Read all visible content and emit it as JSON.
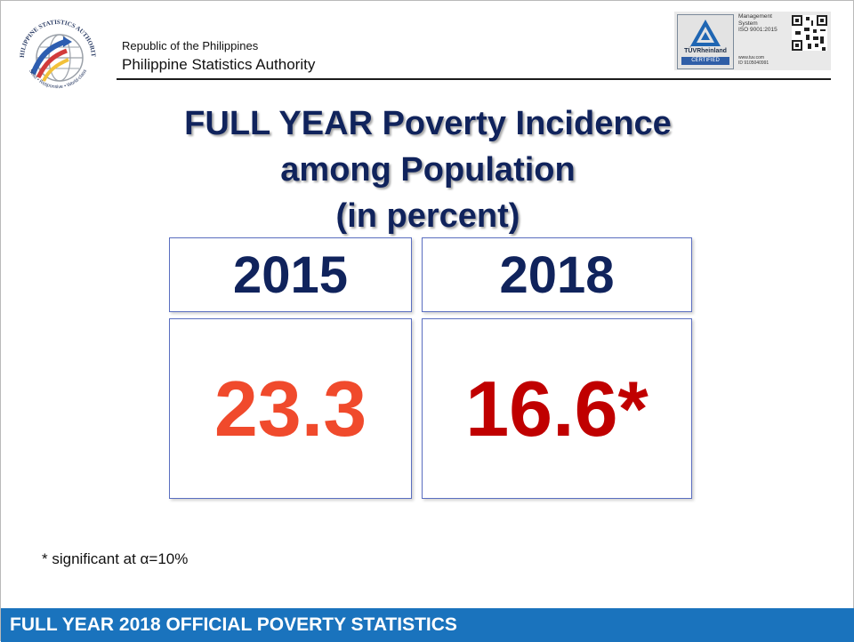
{
  "header": {
    "logo_text_top": "PHILIPPINE STATISTICS AUTHORITY",
    "logo_text_bottom": "Solid • Responsive • World-class",
    "org_line1": "Republic of the Philippines",
    "org_line2": "Philippine Statistics Authority"
  },
  "certification": {
    "brand": "TÜVRheinland",
    "badge": "CERTIFIED",
    "lines": [
      "Management",
      "System",
      "ISO 9001:2015"
    ],
    "website": "www.tuv.com",
    "id": "ID 9105040991"
  },
  "title": {
    "line1": "FULL YEAR Poverty Incidence",
    "line2": "among Population",
    "line3": "(in percent)"
  },
  "table": {
    "columns": [
      {
        "year": "2015",
        "value": "23.3",
        "color": "#f04a2c"
      },
      {
        "year": "2018",
        "value": "16.6*",
        "color": "#c00000"
      }
    ]
  },
  "footnote": "* significant at α=10%",
  "footer": "FULL YEAR 2018 OFFICIAL POVERTY STATISTICS",
  "colors": {
    "title": "#10235c",
    "footer_bg": "#1a73bd"
  }
}
